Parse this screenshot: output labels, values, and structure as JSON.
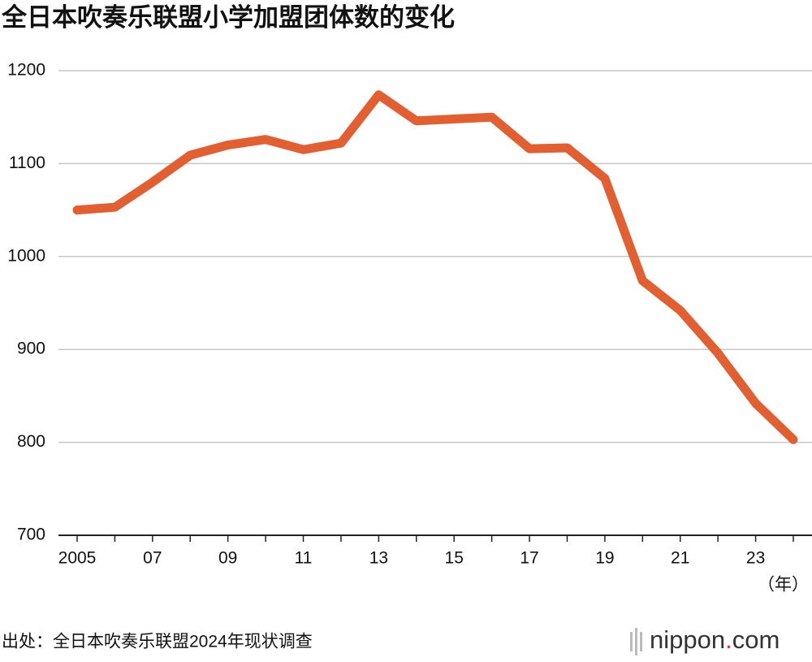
{
  "chart_data": {
    "type": "line",
    "title": "全日本吹奏乐联盟小学加盟团体数的变化",
    "categories": [
      "2005",
      null,
      "07",
      null,
      "09",
      null,
      "11",
      null,
      "13",
      null,
      "15",
      null,
      "17",
      null,
      "19",
      null,
      "21",
      null,
      "23",
      null
    ],
    "series": [
      {
        "name": "加盟团体数",
        "color": "#e06033",
        "values": [
          1050,
          1053,
          1080,
          1109,
          1120,
          1126,
          1115,
          1122,
          1174,
          1146,
          1148,
          1150,
          1116,
          1117,
          1084,
          974,
          942,
          896,
          842,
          803
        ]
      }
    ],
    "ylim": [
      700,
      1200
    ],
    "yticks": [
      700,
      800,
      900,
      1000,
      1100,
      1200
    ],
    "grid": true,
    "x_unit": "（年）",
    "source": "出处：全日本吹奏乐联盟2024年现状调查",
    "logo": {
      "name": "nippon",
      "dot": ".",
      "tld": "com"
    }
  }
}
